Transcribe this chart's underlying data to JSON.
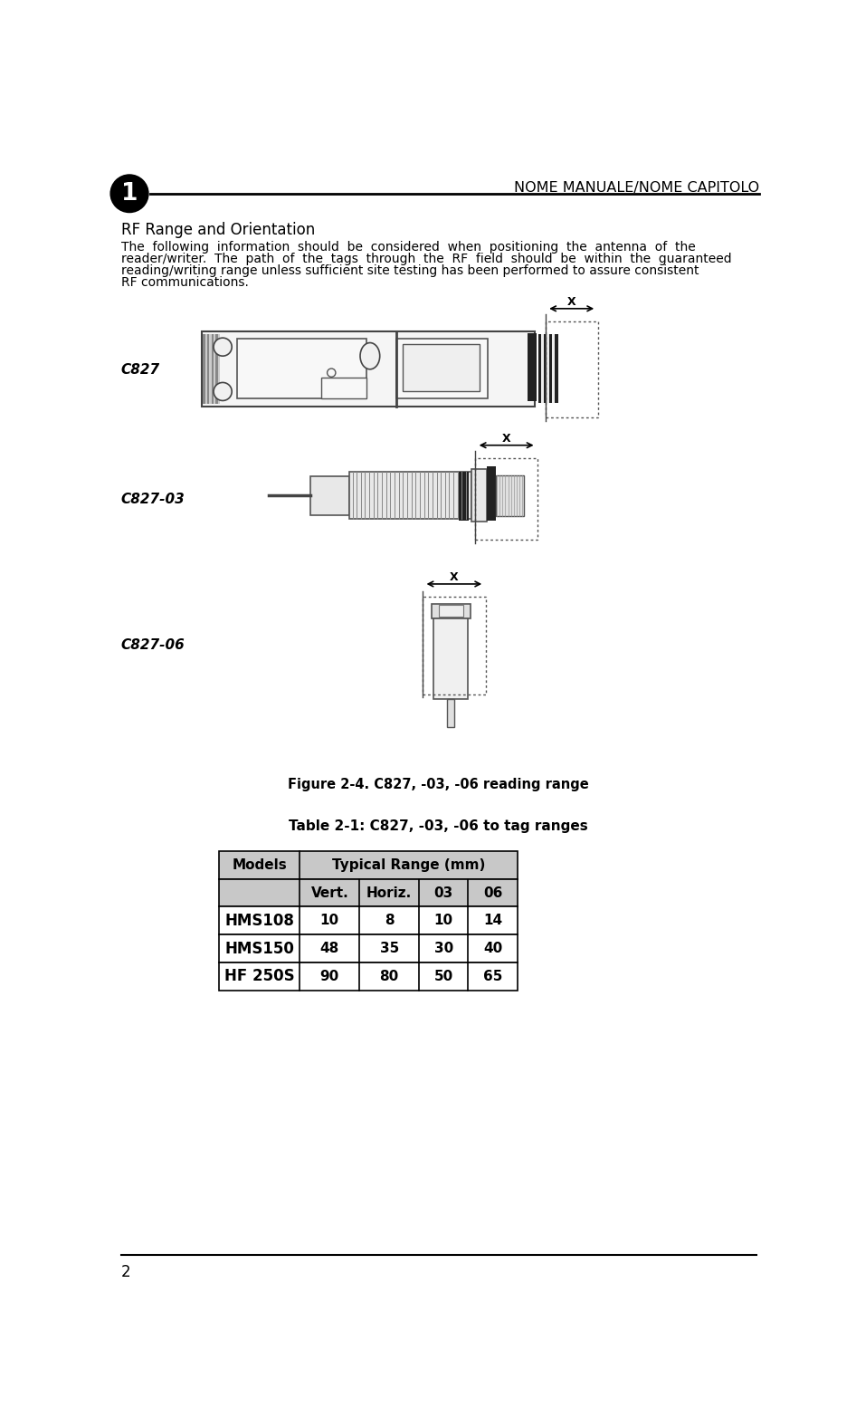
{
  "page_title": "NOME MANUALE/NOME CAPITOLO",
  "page_number_top": "1",
  "page_number_bottom": "2",
  "section_title": "RF Range and Orientation",
  "figure_caption": "Figure 2-4. C827, -03, -06 reading range",
  "table_title": "Table 2-1: C827, -03, -06 to tag ranges",
  "label_c827": "C827",
  "label_c827_03": "C827-03",
  "label_c827_06": "C827-06",
  "body_lines": [
    "The  following  information  should  be  considered  when  positioning  the  antenna  of  the",
    "reader/writer.  The  path  of  the  tags  through  the  RF  field  should  be  within  the  guaranteed",
    "reading/writing range unless sufficient site testing has been performed to assure consistent",
    "RF communications."
  ],
  "table_subheaders": [
    "",
    "Vert.",
    "Horiz.",
    "03",
    "06"
  ],
  "table_rows": [
    [
      "HMS108",
      "10",
      "8",
      "10",
      "14"
    ],
    [
      "HMS150",
      "48",
      "35",
      "30",
      "40"
    ],
    [
      "HF 250S",
      "90",
      "80",
      "50",
      "65"
    ]
  ],
  "bg_color": "#ffffff",
  "header_bg": "#c8c8c8"
}
